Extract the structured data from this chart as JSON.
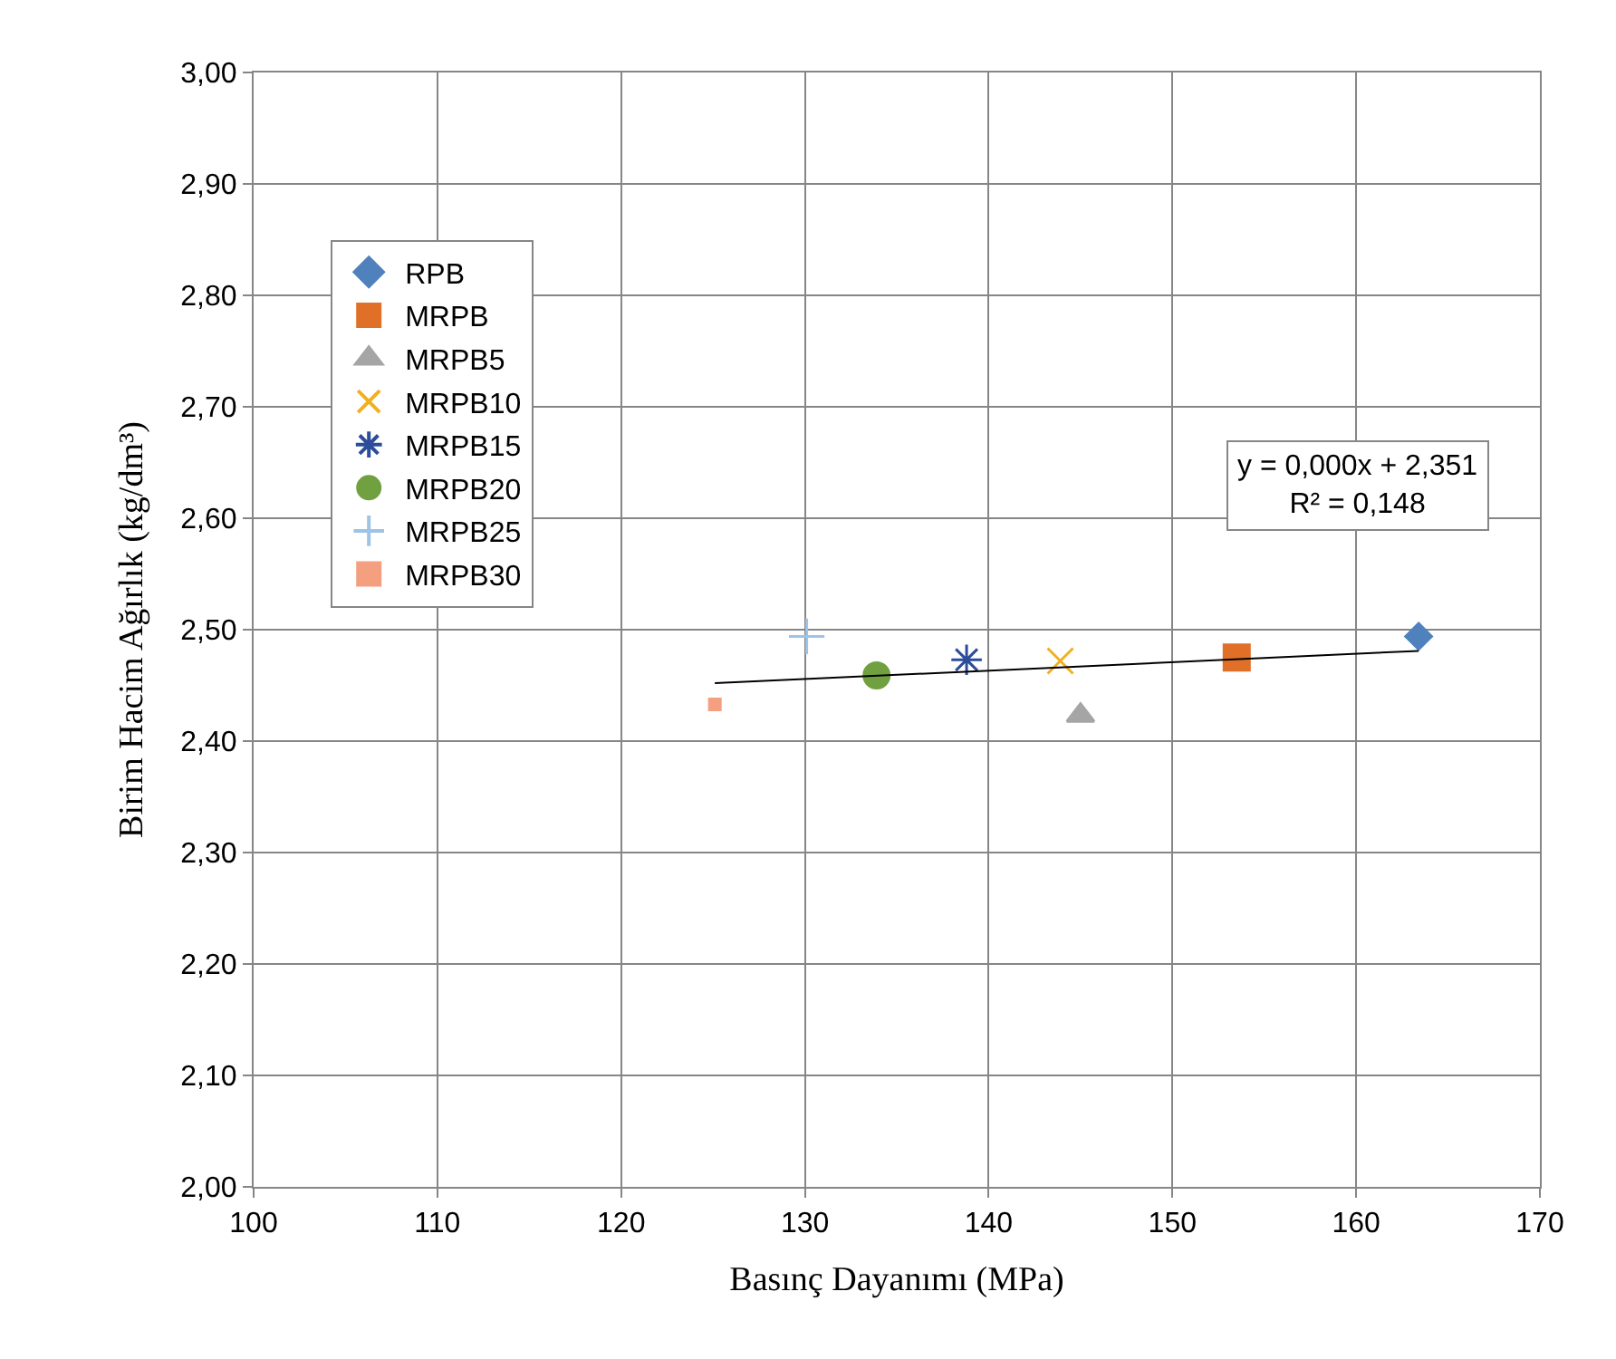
{
  "chart_data": {
    "type": "scatter",
    "xlabel": "Basınç Dayanımı (MPa)",
    "ylabel": "Birim Hacim Ağırlık (kg/dm³)",
    "xlim": [
      100,
      170
    ],
    "xticks": [
      100,
      110,
      120,
      130,
      140,
      150,
      160,
      170
    ],
    "ylim": [
      2.0,
      3.0
    ],
    "yticks": [
      {
        "value": 2.0,
        "label": "2,00"
      },
      {
        "value": 2.1,
        "label": "2,10"
      },
      {
        "value": 2.2,
        "label": "2,20"
      },
      {
        "value": 2.3,
        "label": "2,30"
      },
      {
        "value": 2.4,
        "label": "2,40"
      },
      {
        "value": 2.5,
        "label": "2,50"
      },
      {
        "value": 2.6,
        "label": "2,60"
      },
      {
        "value": 2.7,
        "label": "2,70"
      },
      {
        "value": 2.8,
        "label": "2,80"
      },
      {
        "value": 2.9,
        "label": "2,90"
      },
      {
        "value": 3.0,
        "label": "3,00"
      }
    ],
    "grid": true,
    "legend": "left",
    "annotations": [
      "y = 0,000x + 2,351\nR² = 0,148"
    ],
    "series": [
      {
        "name": "RPB",
        "color": "#4f81bd",
        "marker": "diamond",
        "x": [
          163.4
        ],
        "values": [
          2.494
        ]
      },
      {
        "name": "MRPB",
        "color": "#e07028",
        "marker": "square",
        "x": [
          153.5
        ],
        "values": [
          2.475
        ]
      },
      {
        "name": "MRPB5",
        "color": "#a5a5a5",
        "marker": "triangle",
        "x": [
          145.0
        ],
        "values": [
          2.423
        ]
      },
      {
        "name": "MRPB10",
        "color": "#f0b020",
        "marker": "cross",
        "x": [
          143.9
        ],
        "values": [
          2.472
        ]
      },
      {
        "name": "MRPB15",
        "color": "#2c4d9a",
        "marker": "cross",
        "x": [
          138.8
        ],
        "values": [
          2.473
        ]
      },
      {
        "name": "MRPB20",
        "color": "#70a040",
        "marker": "circle",
        "x": [
          133.9
        ],
        "values": [
          2.459
        ]
      },
      {
        "name": "MRPB25",
        "color": "#9dc3e6",
        "marker": "plus",
        "x": [
          130.1
        ],
        "values": [
          2.494
        ]
      },
      {
        "name": "MRPB30",
        "color": "#f4a080",
        "marker": "square",
        "x": [
          125.1
        ],
        "values": [
          2.433
        ]
      },
      {
        "type": "line",
        "color": "#000000",
        "marker": "none",
        "x": [
          125.1,
          163.4
        ],
        "values": [
          2.452,
          2.481
        ]
      }
    ]
  }
}
